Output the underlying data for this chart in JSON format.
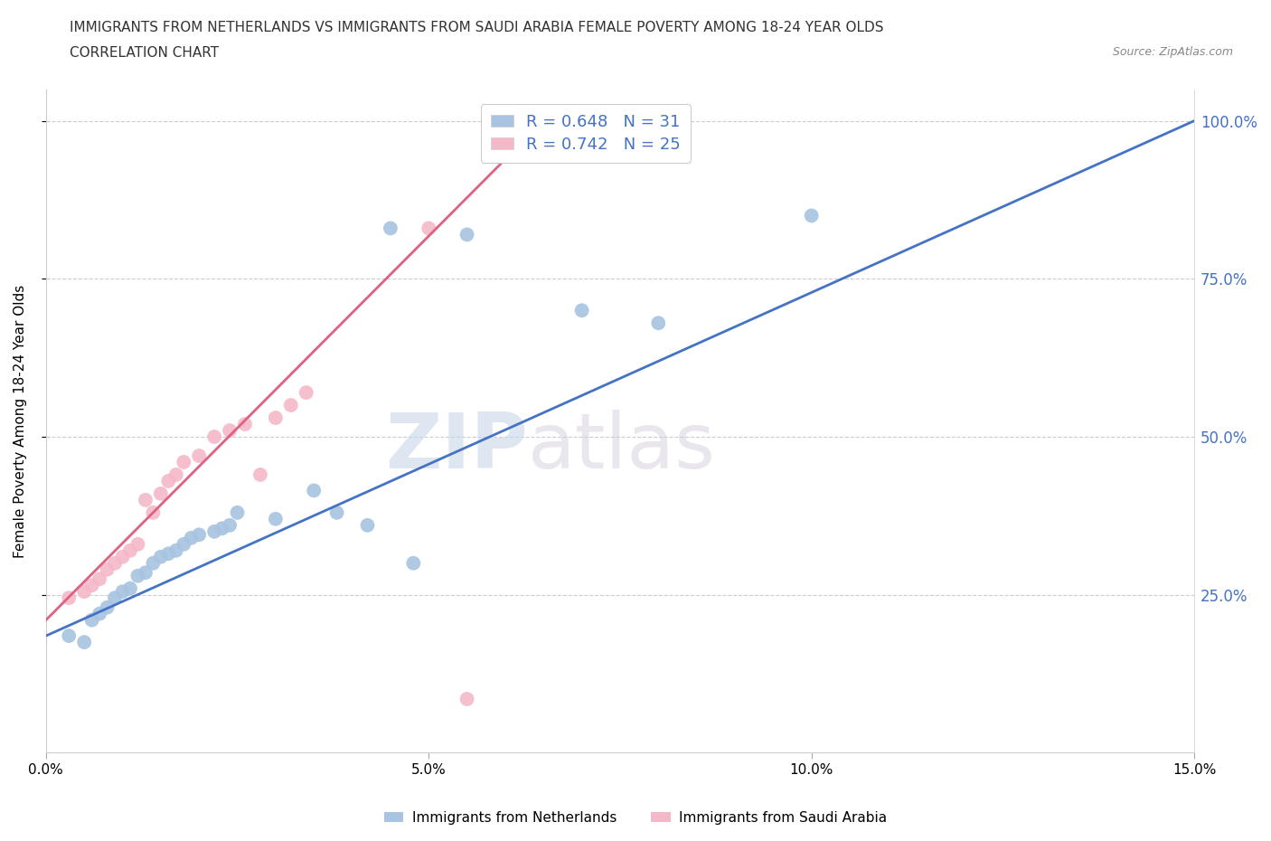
{
  "title_line1": "IMMIGRANTS FROM NETHERLANDS VS IMMIGRANTS FROM SAUDI ARABIA FEMALE POVERTY AMONG 18-24 YEAR OLDS",
  "title_line2": "CORRELATION CHART",
  "source": "Source: ZipAtlas.com",
  "xlabel_bottom": "Immigrants from Netherlands",
  "xlabel_bottom2": "Immigrants from Saudi Arabia",
  "ylabel": "Female Poverty Among 18-24 Year Olds",
  "R_blue": 0.648,
  "N_blue": 31,
  "R_pink": 0.742,
  "N_pink": 25,
  "xlim": [
    0.0,
    0.15
  ],
  "ylim": [
    0.0,
    1.05
  ],
  "yticks": [
    0.25,
    0.5,
    0.75,
    1.0
  ],
  "ytick_labels": [
    "25.0%",
    "50.0%",
    "75.0%",
    "100.0%"
  ],
  "xticks": [
    0.0,
    0.05,
    0.1,
    0.15
  ],
  "xtick_labels": [
    "0.0%",
    "5.0%",
    "10.0%",
    "15.0%"
  ],
  "color_blue": "#a8c4e0",
  "color_blue_dark": "#4472c4",
  "color_pink": "#f4b8c8",
  "color_pink_dark": "#e06080",
  "watermark_zip": "ZIP",
  "watermark_atlas": "atlas",
  "blue_scatter_x": [
    0.003,
    0.005,
    0.006,
    0.007,
    0.008,
    0.009,
    0.01,
    0.011,
    0.012,
    0.013,
    0.014,
    0.015,
    0.016,
    0.017,
    0.018,
    0.019,
    0.02,
    0.022,
    0.023,
    0.024,
    0.025,
    0.03,
    0.035,
    0.038,
    0.042,
    0.045,
    0.048,
    0.055,
    0.07,
    0.08,
    0.1
  ],
  "blue_scatter_y": [
    0.185,
    0.175,
    0.21,
    0.22,
    0.23,
    0.245,
    0.255,
    0.26,
    0.28,
    0.285,
    0.3,
    0.31,
    0.315,
    0.32,
    0.33,
    0.34,
    0.345,
    0.35,
    0.355,
    0.36,
    0.38,
    0.37,
    0.415,
    0.38,
    0.36,
    0.83,
    0.3,
    0.82,
    0.7,
    0.68,
    0.85
  ],
  "pink_scatter_x": [
    0.003,
    0.005,
    0.006,
    0.007,
    0.008,
    0.009,
    0.01,
    0.011,
    0.012,
    0.013,
    0.014,
    0.015,
    0.016,
    0.017,
    0.018,
    0.02,
    0.022,
    0.024,
    0.026,
    0.028,
    0.03,
    0.032,
    0.034,
    0.05,
    0.055
  ],
  "pink_scatter_y": [
    0.245,
    0.255,
    0.265,
    0.275,
    0.29,
    0.3,
    0.31,
    0.32,
    0.33,
    0.4,
    0.38,
    0.41,
    0.43,
    0.44,
    0.46,
    0.47,
    0.5,
    0.51,
    0.52,
    0.44,
    0.53,
    0.55,
    0.57,
    0.83,
    0.085
  ],
  "blue_line_x": [
    0.0,
    0.15
  ],
  "blue_line_y": [
    0.185,
    1.0
  ],
  "pink_line_x": [
    0.0,
    0.065
  ],
  "pink_line_y": [
    0.21,
    1.0
  ]
}
